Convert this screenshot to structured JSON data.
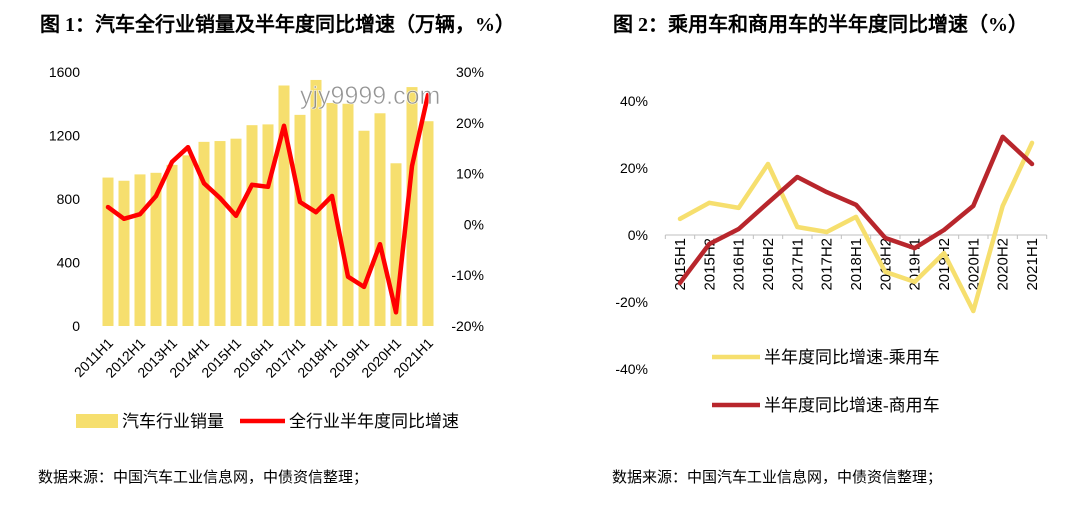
{
  "watermark": "yjy9999.com",
  "chart_data": [
    {
      "type": "bar",
      "title": "图 1：汽车全行业销量及半年度同比增速（万辆，%）",
      "categories": [
        "2011H1",
        "",
        "2012H1",
        "",
        "2013H1",
        "",
        "2014H1",
        "",
        "2015H1",
        "",
        "2016H1",
        "",
        "2017H1",
        "",
        "2018H1",
        "",
        "2019H1",
        "",
        "2020H1",
        "",
        "2021H1"
      ],
      "series": [
        {
          "name": "汽车行业销量",
          "type": "bar",
          "axis": "left",
          "color": "#f6df6e",
          "values": [
            935,
            915,
            955,
            965,
            1015,
            1075,
            1160,
            1165,
            1180,
            1265,
            1270,
            1515,
            1330,
            1550,
            1405,
            1400,
            1230,
            1340,
            1025,
            1505,
            1290
          ]
        },
        {
          "name": "全行业半年度同比增速",
          "type": "line",
          "axis": "right",
          "unit": "%",
          "color": "#ff0000",
          "values": [
            3.4,
            1.1,
            2.0,
            5.6,
            12.3,
            15.2,
            8.1,
            5.2,
            1.7,
            7.8,
            7.4,
            19.4,
            4.4,
            2.4,
            5.6,
            -10.3,
            -12.3,
            -3.9,
            -17.3,
            11.5,
            25.5
          ]
        }
      ],
      "ylim": [
        0,
        1600
      ],
      "y_ticks": [
        "0",
        "400",
        "800",
        "1200",
        "1600"
      ],
      "y2lim": [
        -20,
        30
      ],
      "y2_ticks": [
        "-20%",
        "-10%",
        "0%",
        "10%",
        "20%",
        "30%"
      ],
      "grid": false,
      "legend": "bottom",
      "source": "数据来源：中国汽车工业信息网，中债资信整理；"
    },
    {
      "type": "line",
      "title": "图 2：乘用车和商用车的半年度同比增速（%）",
      "categories": [
        "2015H1",
        "2015H2",
        "2016H1",
        "2016H2",
        "2017H1",
        "2017H2",
        "2018H1",
        "2018H2",
        "2019H1",
        "2019H2",
        "2020H1",
        "2020H2",
        "2021H1"
      ],
      "series": [
        {
          "name": "半年度同比增速-乘用车",
          "unit": "%",
          "color": "#f6df6e",
          "values": [
            4.8,
            9.6,
            8.1,
            21.2,
            2.4,
            0.9,
            5.4,
            -11.0,
            -14.0,
            -5.4,
            -22.7,
            8.7,
            27.5
          ]
        },
        {
          "name": "半年度同比增速-商用车",
          "unit": "%",
          "color": "#b8262c",
          "values": [
            -14.3,
            -2.7,
            1.8,
            9.6,
            17.3,
            12.8,
            9.0,
            -0.9,
            -3.9,
            1.5,
            8.7,
            29.3,
            21.2
          ]
        }
      ],
      "ylim": [
        -40,
        40
      ],
      "y_ticks": [
        "-40%",
        "-20%",
        "0%",
        "20%",
        "40%"
      ],
      "grid": false,
      "legend": "bottom",
      "source": "数据来源：中国汽车工业信息网，中债资信整理；"
    }
  ]
}
